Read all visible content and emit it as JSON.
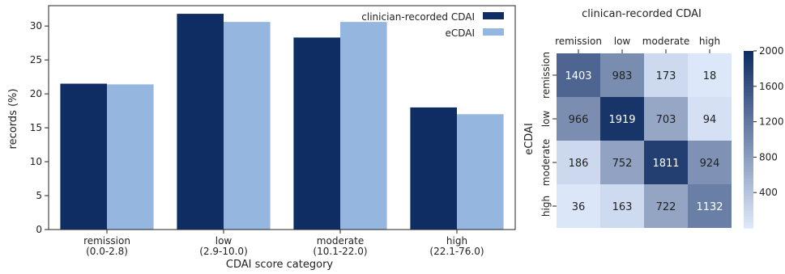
{
  "chart_data": [
    {
      "type": "bar",
      "title": "",
      "xlabel": "CDAI score category",
      "ylabel": "records (%)",
      "ylim": [
        0,
        33
      ],
      "yticks": [
        0,
        5,
        10,
        15,
        20,
        25,
        30
      ],
      "categories": [
        "remission",
        "low",
        "moderate",
        "high"
      ],
      "category_ranges": [
        "(0.0-2.8)",
        "(2.9-10.0)",
        "(10.1-22.0)",
        "(22.1-76.0)"
      ],
      "series": [
        {
          "name": "clinician-recorded CDAI",
          "color": "#0f2d63",
          "values": [
            21.5,
            31.8,
            28.3,
            18.0
          ]
        },
        {
          "name": "eCDAI",
          "color": "#95b6de",
          "values": [
            21.4,
            30.6,
            30.6,
            17.0
          ]
        }
      ],
      "legend": "top-right",
      "grid": false
    },
    {
      "type": "heatmap",
      "title": "clinican-recorded CDAI",
      "xlabel": "",
      "ylabel": "eCDAI",
      "x_categories": [
        "remission",
        "low",
        "moderate",
        "high"
      ],
      "y_categories": [
        "remission",
        "low",
        "moderate",
        "high"
      ],
      "values": [
        [
          1403,
          983,
          173,
          18
        ],
        [
          966,
          1919,
          703,
          94
        ],
        [
          186,
          752,
          1811,
          924
        ],
        [
          36,
          163,
          722,
          1132
        ]
      ],
      "colorbar": {
        "min": 0,
        "max": 2000,
        "ticks": [
          400,
          800,
          1200,
          1600,
          2000
        ],
        "colors": [
          "#dfe9fb",
          "#0f2d63"
        ]
      },
      "grid": false
    }
  ]
}
